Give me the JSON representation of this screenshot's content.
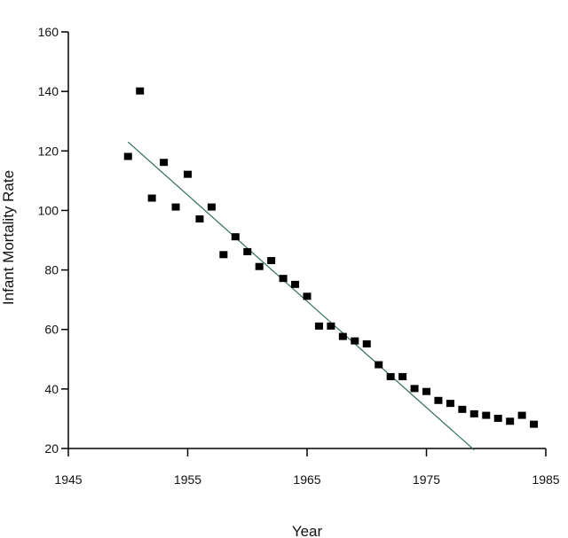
{
  "chart_data": {
    "type": "scatter",
    "title": "",
    "xlabel": "Year",
    "ylabel": "Infant Mortality Rate",
    "xlim": [
      1945,
      1985
    ],
    "ylim": [
      20,
      160
    ],
    "x_ticks": [
      1945,
      1955,
      1965,
      1975,
      1985
    ],
    "y_ticks": [
      20,
      40,
      60,
      80,
      100,
      120,
      140,
      160
    ],
    "x_tick_labels": [
      "1945",
      "1955",
      "1965",
      "1975",
      "1985"
    ],
    "y_tick_labels": [
      "20",
      "40",
      "60",
      "80",
      "100",
      "120",
      "140",
      "160"
    ],
    "grid": false,
    "legend": "none",
    "colors": {
      "points": "#000000",
      "trend_line": "#2f6b5e",
      "axes": "#000000"
    },
    "series": [
      {
        "kind": "points",
        "x": [
          1950,
          1951,
          1952,
          1953,
          1954,
          1955,
          1956,
          1957,
          1958,
          1959,
          1960,
          1961,
          1962,
          1963,
          1964,
          1965,
          1966,
          1967,
          1968,
          1969,
          1970,
          1971,
          1972,
          1973,
          1974,
          1975,
          1976,
          1977,
          1978,
          1979,
          1980,
          1981,
          1982,
          1983,
          1984
        ],
        "y": [
          118,
          140,
          104,
          116,
          101,
          112,
          97,
          101,
          85,
          91,
          86,
          81,
          83,
          77,
          75,
          71,
          61,
          61,
          57.5,
          56,
          55,
          48,
          44,
          44,
          40,
          39,
          36,
          35,
          33,
          31.5,
          31,
          30,
          29,
          31,
          28
        ]
      },
      {
        "kind": "trend_line",
        "x": [
          1950,
          1979
        ],
        "y": [
          123,
          19.5
        ]
      }
    ]
  }
}
